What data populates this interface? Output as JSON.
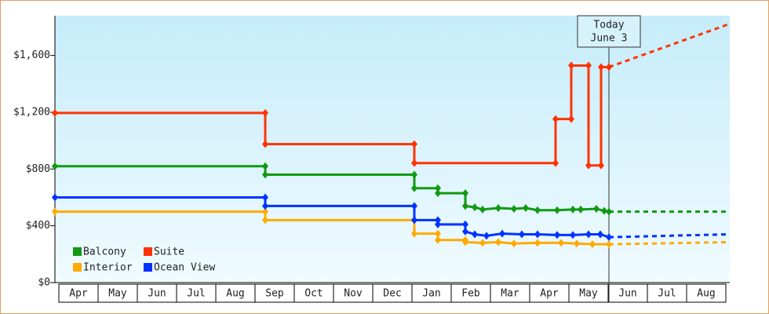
{
  "chart_data": {
    "type": "line",
    "categories": [
      "Apr",
      "May",
      "Jun",
      "Jul",
      "Aug",
      "Sep",
      "Oct",
      "Nov",
      "Dec",
      "Jan",
      "Feb",
      "Mar",
      "Apr",
      "May",
      "Jun",
      "Jul",
      "Aug"
    ],
    "xlim": [
      -0.1,
      17.1
    ],
    "ylim": [
      0,
      1880
    ],
    "yticks": [
      {
        "value": 0,
        "label": "$0"
      },
      {
        "value": 400,
        "label": "$400"
      },
      {
        "value": 800,
        "label": "$800"
      },
      {
        "value": 1200,
        "label": "$1,200"
      },
      {
        "value": 1600,
        "label": "$1,600"
      }
    ],
    "annotation": {
      "x": 14.02,
      "lines": [
        "Today",
        "June 3"
      ]
    },
    "series": [
      {
        "name": "Balcony",
        "color": "#119911",
        "x": [
          -0.1,
          5.26,
          5.26,
          9.06,
          9.06,
          9.66,
          9.66,
          10.36,
          10.36,
          10.6,
          10.8,
          11.2,
          11.6,
          11.9,
          12.2,
          12.7,
          13.1,
          13.3,
          13.7,
          13.9,
          14.02
        ],
        "values": [
          820,
          820,
          760,
          760,
          665,
          665,
          630,
          630,
          540,
          530,
          515,
          525,
          520,
          525,
          510,
          510,
          515,
          515,
          520,
          505,
          500
        ],
        "forecast_x": [
          14.02,
          17.1
        ],
        "forecast_values": [
          500,
          500
        ]
      },
      {
        "name": "Suite",
        "color": "#ff3300",
        "x": [
          -0.1,
          5.26,
          5.26,
          9.06,
          9.06,
          12.66,
          12.66,
          13.06,
          13.06,
          13.5,
          13.5,
          13.82,
          13.82,
          14.02
        ],
        "values": [
          1195,
          1195,
          975,
          975,
          842,
          842,
          1152,
          1152,
          1529,
          1529,
          825,
          825,
          1518,
          1518
        ],
        "forecast_x": [
          14.02,
          17.1
        ],
        "forecast_values": [
          1518,
          1823
        ]
      },
      {
        "name": "Interior",
        "color": "#ffaa00",
        "x": [
          -0.1,
          5.26,
          5.26,
          9.06,
          9.06,
          9.66,
          9.66,
          10.36,
          10.36,
          10.8,
          11.2,
          11.6,
          12.2,
          12.8,
          13.2,
          13.6,
          14.02
        ],
        "values": [
          500,
          500,
          440,
          440,
          345,
          345,
          300,
          300,
          285,
          280,
          285,
          275,
          280,
          280,
          275,
          270,
          270
        ],
        "forecast_x": [
          14.02,
          17.1
        ],
        "forecast_values": [
          270,
          285
        ]
      },
      {
        "name": "Ocean View",
        "color": "#0033ff",
        "x": [
          -0.1,
          5.26,
          5.26,
          9.06,
          9.06,
          9.66,
          9.66,
          10.36,
          10.36,
          10.6,
          10.9,
          11.3,
          11.8,
          12.2,
          12.7,
          13.1,
          13.5,
          13.8,
          14.02
        ],
        "values": [
          600,
          600,
          540,
          540,
          440,
          440,
          410,
          410,
          360,
          340,
          330,
          345,
          340,
          340,
          335,
          335,
          340,
          340,
          320
        ],
        "forecast_x": [
          14.02,
          17.1
        ],
        "forecast_values": [
          320,
          340
        ]
      }
    ]
  }
}
